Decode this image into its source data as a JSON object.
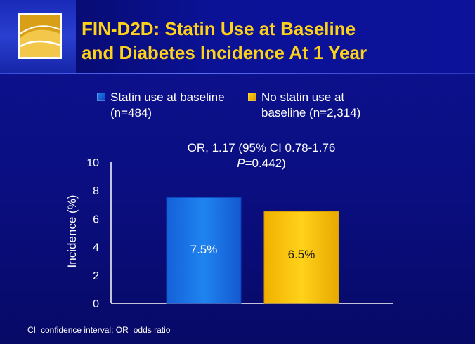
{
  "title_lines": [
    "FIN-D2D: Statin Use at Baseline",
    "and Diabetes Incidence At 1 Year"
  ],
  "legend": [
    {
      "label": "Statin use at baseline (n=484)",
      "color": "#1f84f0"
    },
    {
      "label": "No statin use at baseline (n=2,314)",
      "color": "#ffd21a"
    }
  ],
  "annotation": {
    "line1": "OR, 1.17 (95% CI 0.78-1.76",
    "p_symbol": "P",
    "p_rest": "=0.442)"
  },
  "footnote": "CI=confidence interval; OR=odds ratio",
  "colors": {
    "background": "#0b0f86",
    "title": "#ffd21a",
    "bar_statin": "#1f84f0",
    "bar_no_statin": "#ffd21a",
    "text": "#ffffff"
  },
  "chart_data": {
    "type": "bar",
    "categories": [
      "Statin use at baseline (n=484)",
      "No statin use at baseline (n=2,314)"
    ],
    "values": [
      7.5,
      6.5
    ],
    "data_labels": [
      "7.5%",
      "6.5%"
    ],
    "ylabel": "Incidence (%)",
    "ylim": [
      0,
      10
    ],
    "yticks": [
      0,
      2,
      4,
      6,
      8,
      10
    ],
    "grid": false,
    "legend_placement": "top"
  }
}
